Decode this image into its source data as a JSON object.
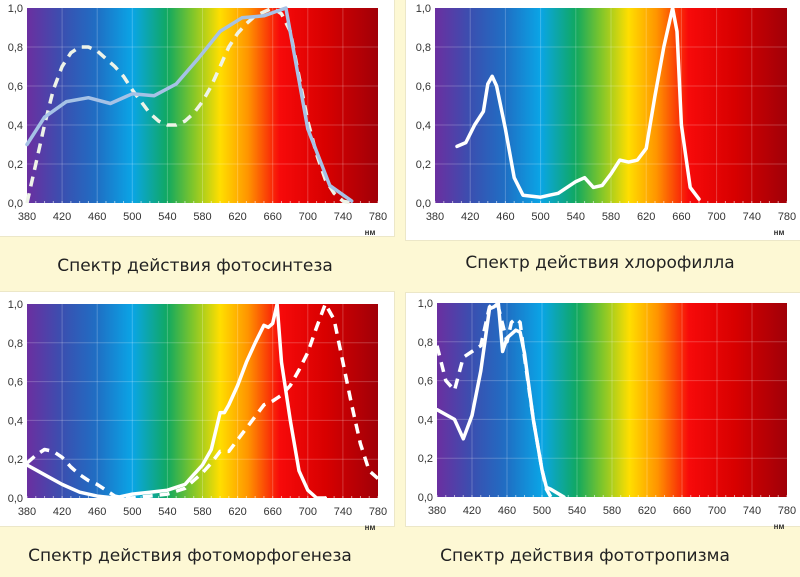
{
  "spectrum_colors": [
    "#6b2fa0",
    "#3a4fb0",
    "#1f6fc4",
    "#0aa5e6",
    "#10a860",
    "#7cc52c",
    "#ffde00",
    "#ff9400",
    "#f70a0a",
    "#d80000",
    "#a00008"
  ],
  "chart_data": [
    {
      "type": "line",
      "title": "Спектр действия фотосинтеза",
      "xlabel": "нм",
      "ylabel": "",
      "xlim": [
        380,
        780
      ],
      "ylim": [
        0,
        1.0
      ],
      "xticks": [
        "380",
        "420",
        "460",
        "500",
        "540",
        "580",
        "620",
        "660",
        "700",
        "740",
        "780"
      ],
      "yticks": [
        "0,0",
        "0,2",
        "0,4",
        "0,6",
        "0,8",
        "1,0"
      ],
      "grid": true,
      "series": [
        {
          "name": "dashed",
          "style": "dashed",
          "color": "#eef3e8",
          "x": [
            380,
            390,
            400,
            410,
            420,
            430,
            440,
            450,
            460,
            470,
            480,
            490,
            500,
            510,
            520,
            530,
            540,
            550,
            560,
            570,
            580,
            590,
            600,
            610,
            620,
            630,
            640,
            650,
            660,
            670,
            680,
            690,
            700,
            710,
            720,
            730,
            740,
            750
          ],
          "y": [
            0.0,
            0.2,
            0.4,
            0.58,
            0.7,
            0.77,
            0.8,
            0.8,
            0.78,
            0.74,
            0.7,
            0.65,
            0.58,
            0.52,
            0.46,
            0.42,
            0.4,
            0.4,
            0.42,
            0.46,
            0.52,
            0.6,
            0.7,
            0.8,
            0.87,
            0.92,
            0.96,
            0.98,
            1.0,
            0.97,
            0.88,
            0.65,
            0.42,
            0.25,
            0.12,
            0.05,
            0.01,
            0.0
          ]
        },
        {
          "name": "solid",
          "style": "solid",
          "color": "#a6c2e6",
          "x": [
            380,
            400,
            425,
            450,
            475,
            500,
            525,
            550,
            575,
            600,
            625,
            650,
            675,
            700,
            725,
            750
          ],
          "y": [
            0.3,
            0.44,
            0.52,
            0.54,
            0.51,
            0.56,
            0.55,
            0.61,
            0.74,
            0.88,
            0.95,
            0.96,
            1.0,
            0.38,
            0.09,
            0.01
          ]
        }
      ]
    },
    {
      "type": "line",
      "title": "Спектр действия хлорофилла",
      "xlabel": "нм",
      "ylabel": "",
      "xlim": [
        380,
        780
      ],
      "ylim": [
        0,
        1.0
      ],
      "xticks": [
        "380",
        "420",
        "460",
        "500",
        "540",
        "580",
        "620",
        "660",
        "700",
        "740",
        "780"
      ],
      "yticks": [
        "0,0",
        "0,2",
        "0,4",
        "0,6",
        "0,8",
        "1,0"
      ],
      "grid": true,
      "series": [
        {
          "name": "chlorophyll",
          "style": "solid",
          "color": "#ffffff",
          "x": [
            405,
            415,
            425,
            435,
            440,
            445,
            450,
            460,
            470,
            480,
            490,
            500,
            510,
            520,
            530,
            540,
            550,
            560,
            570,
            580,
            590,
            600,
            610,
            620,
            630,
            640,
            650,
            655,
            660,
            670,
            680
          ],
          "y": [
            0.29,
            0.31,
            0.4,
            0.47,
            0.61,
            0.65,
            0.6,
            0.38,
            0.13,
            0.04,
            0.035,
            0.03,
            0.04,
            0.05,
            0.08,
            0.11,
            0.13,
            0.08,
            0.09,
            0.15,
            0.22,
            0.21,
            0.22,
            0.28,
            0.55,
            0.8,
            1.0,
            0.88,
            0.4,
            0.08,
            0.02
          ]
        }
      ]
    },
    {
      "type": "line",
      "title": "Спектр действия фотоморфогенеза",
      "xlabel": "нм",
      "ylabel": "",
      "xlim": [
        380,
        780
      ],
      "ylim": [
        0,
        1.0
      ],
      "xticks": [
        "380",
        "420",
        "460",
        "500",
        "540",
        "580",
        "620",
        "660",
        "700",
        "740",
        "780"
      ],
      "yticks": [
        "0,0",
        "0,2",
        "0,4",
        "0,6",
        "0,8",
        "1,0"
      ],
      "grid": true,
      "series": [
        {
          "name": "solid",
          "style": "solid",
          "color": "#ffffff",
          "x": [
            380,
            400,
            420,
            440,
            460,
            480,
            500,
            520,
            540,
            560,
            570,
            580,
            590,
            600,
            605,
            610,
            620,
            630,
            640,
            650,
            655,
            660,
            665,
            670,
            680,
            690,
            700,
            710,
            720
          ],
          "y": [
            0.17,
            0.12,
            0.07,
            0.03,
            0.01,
            0.0,
            0.02,
            0.03,
            0.04,
            0.07,
            0.12,
            0.17,
            0.25,
            0.44,
            0.44,
            0.48,
            0.58,
            0.7,
            0.8,
            0.89,
            0.88,
            0.9,
            1.0,
            0.7,
            0.4,
            0.14,
            0.04,
            0.0,
            0.0
          ]
        },
        {
          "name": "dashed",
          "style": "dashed",
          "color": "#ffffff",
          "x": [
            380,
            390,
            400,
            410,
            420,
            430,
            440,
            450,
            460,
            470,
            480,
            490,
            500,
            520,
            540,
            560,
            570,
            580,
            590,
            600,
            610,
            620,
            630,
            640,
            650,
            660,
            670,
            680,
            690,
            700,
            710,
            720,
            730,
            740,
            750,
            760,
            770,
            780
          ],
          "y": [
            0.18,
            0.22,
            0.25,
            0.24,
            0.21,
            0.16,
            0.12,
            0.09,
            0.07,
            0.04,
            0.01,
            0.0,
            0.0,
            0.01,
            0.02,
            0.05,
            0.09,
            0.13,
            0.18,
            0.24,
            0.24,
            0.3,
            0.36,
            0.42,
            0.48,
            0.5,
            0.53,
            0.58,
            0.66,
            0.75,
            0.88,
            1.0,
            0.92,
            0.7,
            0.48,
            0.28,
            0.14,
            0.1
          ]
        }
      ]
    },
    {
      "type": "line",
      "title": "Спектр действия фототропизма",
      "xlabel": "нм",
      "ylabel": "",
      "xlim": [
        380,
        780
      ],
      "ylim": [
        0,
        1.0
      ],
      "xticks": [
        "380",
        "420",
        "460",
        "500",
        "540",
        "580",
        "620",
        "660",
        "700",
        "740",
        "780"
      ],
      "yticks": [
        "0,0",
        "0,2",
        "0,4",
        "0,6",
        "0,8",
        "1,0"
      ],
      "grid": true,
      "series": [
        {
          "name": "solid",
          "style": "solid",
          "color": "#ffffff",
          "x": [
            380,
            400,
            410,
            420,
            430,
            440,
            445,
            450,
            455,
            460,
            470,
            475,
            480,
            490,
            500,
            505,
            510,
            525
          ],
          "y": [
            0.45,
            0.4,
            0.3,
            0.42,
            0.65,
            0.97,
            0.98,
            1.0,
            0.75,
            0.82,
            0.86,
            0.85,
            0.74,
            0.4,
            0.14,
            0.05,
            0.04,
            0.0
          ]
        },
        {
          "name": "dashed",
          "style": "dashed",
          "color": "#ffffff",
          "x": [
            380,
            390,
            400,
            410,
            420,
            430,
            440,
            445,
            450,
            460,
            465,
            470,
            475,
            480,
            490,
            500,
            505,
            510
          ],
          "y": [
            0.78,
            0.6,
            0.55,
            0.72,
            0.75,
            0.78,
            0.98,
            1.0,
            0.98,
            0.8,
            0.9,
            0.92,
            0.9,
            0.72,
            0.4,
            0.14,
            0.04,
            0.0
          ]
        }
      ]
    }
  ]
}
